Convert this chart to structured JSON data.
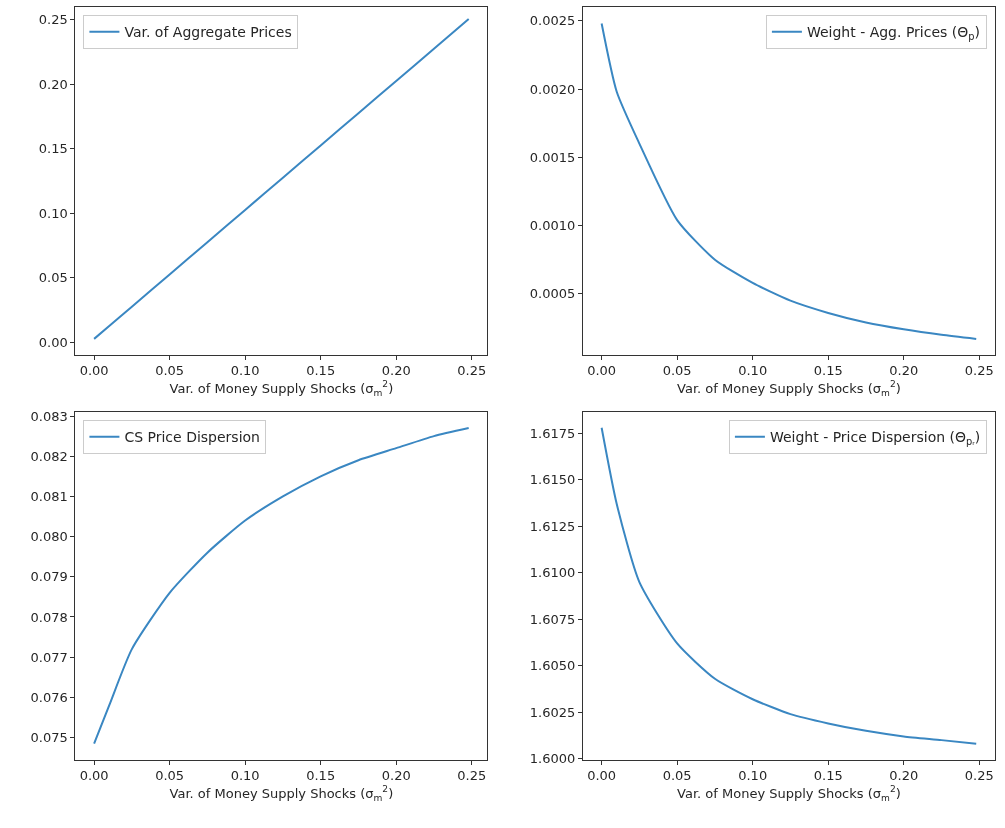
{
  "chart_data": [
    {
      "type": "line",
      "xlabel": "Var. of Money Supply Shocks (σ$_{m}$$^{2}$)",
      "x": [
        0,
        0.01,
        0.025,
        0.05,
        0.075,
        0.1,
        0.125,
        0.15,
        0.175,
        0.2,
        0.225,
        0.248
      ],
      "series": [
        {
          "name": "Var. of Aggregate Prices",
          "color": "#3a87c2",
          "values": [
            0.0025,
            0.0125,
            0.0275,
            0.0525,
            0.0775,
            0.1025,
            0.1275,
            0.1525,
            0.1775,
            0.2025,
            0.2275,
            0.2505
          ]
        }
      ],
      "xlim": [
        -0.0124,
        0.2604
      ],
      "ylim": [
        -0.0098,
        0.2598
      ],
      "xticks": [
        {
          "value": 0,
          "label": "0.00"
        },
        {
          "value": 0.05,
          "label": "0.05"
        },
        {
          "value": 0.1,
          "label": "0.10"
        },
        {
          "value": 0.15,
          "label": "0.15"
        },
        {
          "value": 0.2,
          "label": "0.20"
        },
        {
          "value": 0.25,
          "label": "0.25"
        }
      ],
      "yticks": [
        {
          "value": 0,
          "label": "0.00"
        },
        {
          "value": 0.05,
          "label": "0.05"
        },
        {
          "value": 0.1,
          "label": "0.10"
        },
        {
          "value": 0.15,
          "label": "0.15"
        },
        {
          "value": 0.2,
          "label": "0.20"
        },
        {
          "value": 0.25,
          "label": "0.25"
        }
      ],
      "legend": "top left"
    },
    {
      "type": "line",
      "xlabel": "Var. of Money Supply Shocks (σ$_{m}$$^{2}$)",
      "x": [
        0,
        0.01,
        0.025,
        0.05,
        0.075,
        0.1,
        0.125,
        0.15,
        0.175,
        0.2,
        0.225,
        0.248
      ],
      "series": [
        {
          "name": "Weight - Agg. Prices (Θ$_{p}$)",
          "color": "#3a87c2",
          "values": [
            0.00248,
            0.00198,
            0.0016,
            0.00104,
            0.00075,
            0.00058,
            0.00045,
            0.00036,
            0.00029,
            0.00024,
            0.0002,
            0.00017
          ]
        }
      ],
      "xlim": [
        -0.0124,
        0.2604
      ],
      "ylim": [
        5.4e-05,
        0.0026
      ],
      "xticks": [
        {
          "value": 0,
          "label": "0.00"
        },
        {
          "value": 0.05,
          "label": "0.05"
        },
        {
          "value": 0.1,
          "label": "0.10"
        },
        {
          "value": 0.15,
          "label": "0.15"
        },
        {
          "value": 0.2,
          "label": "0.20"
        },
        {
          "value": 0.25,
          "label": "0.25"
        }
      ],
      "yticks": [
        {
          "value": 0.0005,
          "label": "0.0005"
        },
        {
          "value": 0.001,
          "label": "0.0010"
        },
        {
          "value": 0.0015,
          "label": "0.0015"
        },
        {
          "value": 0.002,
          "label": "0.0020"
        },
        {
          "value": 0.0025,
          "label": "0.0025"
        }
      ],
      "legend": "top right"
    },
    {
      "type": "line",
      "xlabel": "Var. of Money Supply Shocks (σ$_{m}$$^{2}$)",
      "x": [
        0,
        0.01,
        0.025,
        0.05,
        0.075,
        0.1,
        0.125,
        0.15,
        0.175,
        0.2,
        0.225,
        0.248
      ],
      "series": [
        {
          "name": "CS Price Dispersion",
          "color": "#3a87c2",
          "values": [
            0.07485,
            0.0758,
            0.0772,
            0.0786,
            0.0796,
            0.0804,
            0.081,
            0.0815,
            0.0819,
            0.0822,
            0.0825,
            0.0827
          ]
        }
      ],
      "xlim": [
        -0.0124,
        0.2604
      ],
      "ylim": [
        0.07445,
        0.0831
      ],
      "xticks": [
        {
          "value": 0,
          "label": "0.00"
        },
        {
          "value": 0.05,
          "label": "0.05"
        },
        {
          "value": 0.1,
          "label": "0.10"
        },
        {
          "value": 0.15,
          "label": "0.15"
        },
        {
          "value": 0.2,
          "label": "0.20"
        },
        {
          "value": 0.25,
          "label": "0.25"
        }
      ],
      "yticks": [
        0.075,
        0.076,
        0.077,
        0.078,
        0.079,
        {
          "value": 0.08,
          "label": "0.080"
        },
        0.081,
        0.082,
        0.083
      ],
      "legend": "top left"
    },
    {
      "type": "line",
      "xlabel": "Var. of Money Supply Shocks (σ$_{m}$$^{2}$)",
      "x": [
        0,
        0.01,
        0.025,
        0.05,
        0.075,
        0.1,
        0.125,
        0.15,
        0.175,
        0.2,
        0.225,
        0.248
      ],
      "series": [
        {
          "name": "Weight - Price Dispersion (Θ$_{pᵣ}$)",
          "color": "#3a87c2",
          "values": [
            1.6178,
            1.6137,
            1.6095,
            1.6062,
            1.6043,
            1.6032,
            1.6024,
            1.6019,
            1.6015,
            1.6012,
            1.601,
            1.6008
          ]
        }
      ],
      "xlim": [
        -0.0124,
        0.2604
      ],
      "ylim": [
        1.59995,
        1.61865
      ],
      "xticks": [
        {
          "value": 0,
          "label": "0.00"
        },
        {
          "value": 0.05,
          "label": "0.05"
        },
        {
          "value": 0.1,
          "label": "0.10"
        },
        {
          "value": 0.15,
          "label": "0.15"
        },
        {
          "value": 0.2,
          "label": "0.20"
        },
        {
          "value": 0.25,
          "label": "0.25"
        }
      ],
      "yticks": [
        {
          "value": 1.6,
          "label": "1.6000"
        },
        1.6025,
        {
          "value": 1.605,
          "label": "1.6050"
        },
        1.6075,
        {
          "value": 1.61,
          "label": "1.6100"
        },
        1.6125,
        {
          "value": 1.615,
          "label": "1.6150"
        },
        1.6175
      ],
      "legend": "top right"
    }
  ]
}
